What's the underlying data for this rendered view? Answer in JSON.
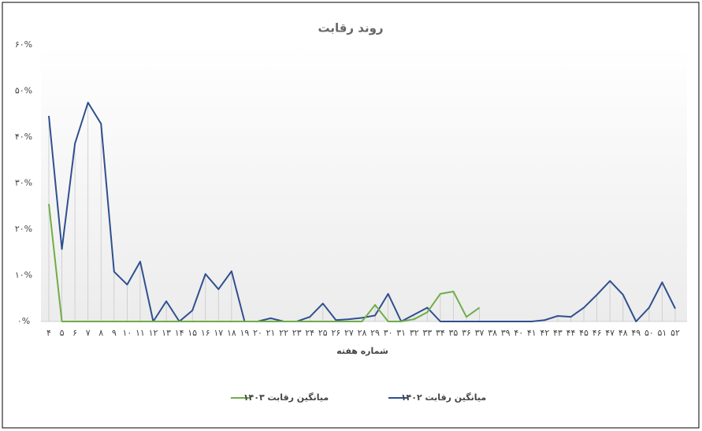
{
  "chart_data": {
    "type": "line",
    "title": "روند رقابت",
    "x_label": "شماره هفته",
    "categories": [
      "۴",
      "۵",
      "۶",
      "۷",
      "۸",
      "۹",
      "۱۰",
      "۱۱",
      "۱۲",
      "۱۳",
      "۱۴",
      "۱۵",
      "۱۶",
      "۱۷",
      "۱۸",
      "۱۹",
      "۲۰",
      "۲۱",
      "۲۲",
      "۲۳",
      "۲۴",
      "۲۵",
      "۲۶",
      "۲۷",
      "۲۸",
      "۲۹",
      "۳۰",
      "۳۱",
      "۳۲",
      "۳۳",
      "۳۴",
      "۳۵",
      "۳۶",
      "۳۷",
      "۳۸",
      "۳۹",
      "۴۰",
      "۴۱",
      "۴۲",
      "۴۳",
      "۴۴",
      "۴۵",
      "۴۶",
      "۴۷",
      "۴۸",
      "۴۹",
      "۵۰",
      "۵۱",
      "۵۲"
    ],
    "series": [
      {
        "name": "میانگین رقابت ۱۴۰۲",
        "color": "#2f4f8f",
        "values": [
          44.6,
          15.7,
          38.6,
          47.5,
          42.9,
          10.8,
          8.0,
          13.0,
          0,
          4.4,
          0,
          2.4,
          10.3,
          7.0,
          10.9,
          0,
          0,
          0.7,
          0,
          0,
          1.0,
          3.9,
          0.3,
          0.5,
          0.8,
          1.3,
          6.0,
          0,
          1.5,
          3.0,
          0,
          0,
          0,
          0,
          0,
          0,
          0,
          0,
          0.3,
          1.2,
          1.0,
          3.0,
          5.8,
          8.8,
          5.8,
          0,
          3.0,
          8.5,
          2.8
        ]
      },
      {
        "name": "میانگین رقابت ۱۴۰۳",
        "color": "#70ad47",
        "values": [
          25.5,
          0,
          0,
          0,
          0,
          0,
          0,
          0,
          0,
          0,
          0,
          0,
          0,
          0,
          0,
          0,
          0,
          0,
          0,
          0,
          0,
          0,
          0,
          0,
          0,
          3.6,
          0,
          0,
          0.5,
          2.0,
          6.0,
          6.5,
          1.0,
          3.0,
          null,
          null,
          null,
          null,
          null,
          null,
          null,
          null,
          null,
          null,
          null,
          null,
          null,
          null,
          null
        ]
      }
    ],
    "ylim": [
      0,
      60
    ],
    "yticks": [
      {
        "value": 0,
        "label": "۰%"
      },
      {
        "value": 10,
        "label": "۱۰%"
      },
      {
        "value": 20,
        "label": "۲۰%"
      },
      {
        "value": 30,
        "label": "۳۰%"
      },
      {
        "value": 40,
        "label": "۴۰%"
      },
      {
        "value": 50,
        "label": "۵۰%"
      },
      {
        "value": 60,
        "label": "۶۰%"
      }
    ],
    "legend": "bottom"
  }
}
